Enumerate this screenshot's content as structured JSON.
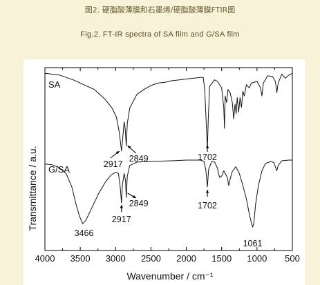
{
  "caption_cn": "图2. 硬脂酸薄膜和石墨烯/硬脂酸薄膜FTIR图",
  "caption_en": "Fig.2. FT-IR spectra of SA film and G/SA film",
  "chart_data": {
    "type": "line",
    "xlabel": "Wavenumber / cm⁻¹",
    "ylabel": "Transmittance / a.u.",
    "xlim": [
      4000,
      500
    ],
    "x_reversed": true,
    "xticks": [
      4000,
      3500,
      3000,
      2500,
      2000,
      1500,
      1000,
      500
    ],
    "grid": false,
    "y_values_relative": "0 = trace bottom, 1 = trace top (arbitrary units, offset stack)",
    "series": [
      {
        "name": "SA",
        "points": [
          [
            4000,
            0.98
          ],
          [
            3800,
            0.96
          ],
          [
            3600,
            0.9
          ],
          [
            3450,
            0.84
          ],
          [
            3300,
            0.78
          ],
          [
            3150,
            0.66
          ],
          [
            3050,
            0.55
          ],
          [
            2990,
            0.44
          ],
          [
            2950,
            0.26
          ],
          [
            2930,
            0.12
          ],
          [
            2917,
            0.02
          ],
          [
            2905,
            0.12
          ],
          [
            2880,
            0.38
          ],
          [
            2865,
            0.3
          ],
          [
            2849,
            0.08
          ],
          [
            2835,
            0.36
          ],
          [
            2800,
            0.55
          ],
          [
            2700,
            0.72
          ],
          [
            2600,
            0.78
          ],
          [
            2500,
            0.83
          ],
          [
            2400,
            0.86
          ],
          [
            2300,
            0.87
          ],
          [
            2200,
            0.89
          ],
          [
            2100,
            0.9
          ],
          [
            2000,
            0.91
          ],
          [
            1900,
            0.92
          ],
          [
            1800,
            0.93
          ],
          [
            1760,
            0.93
          ],
          [
            1740,
            0.78
          ],
          [
            1720,
            0.4
          ],
          [
            1702,
            0.05
          ],
          [
            1690,
            0.4
          ],
          [
            1670,
            0.82
          ],
          [
            1600,
            0.9
          ],
          [
            1560,
            0.88
          ],
          [
            1500,
            0.8
          ],
          [
            1470,
            0.55
          ],
          [
            1460,
            0.3
          ],
          [
            1450,
            0.7
          ],
          [
            1430,
            0.62
          ],
          [
            1410,
            0.78
          ],
          [
            1380,
            0.74
          ],
          [
            1350,
            0.62
          ],
          [
            1330,
            0.42
          ],
          [
            1310,
            0.6
          ],
          [
            1295,
            0.48
          ],
          [
            1280,
            0.68
          ],
          [
            1260,
            0.5
          ],
          [
            1240,
            0.68
          ],
          [
            1220,
            0.56
          ],
          [
            1200,
            0.76
          ],
          [
            1180,
            0.7
          ],
          [
            1150,
            0.84
          ],
          [
            1110,
            0.8
          ],
          [
            1080,
            0.86
          ],
          [
            1000,
            0.88
          ],
          [
            950,
            0.8
          ],
          [
            930,
            0.7
          ],
          [
            910,
            0.86
          ],
          [
            850,
            0.95
          ],
          [
            780,
            0.94
          ],
          [
            740,
            0.88
          ],
          [
            720,
            0.74
          ],
          [
            700,
            0.86
          ],
          [
            650,
            0.97
          ],
          [
            600,
            0.92
          ],
          [
            550,
            0.96
          ],
          [
            500,
            0.98
          ]
        ],
        "annotations": [
          {
            "label": "2917",
            "x": 2917
          },
          {
            "label": "2849",
            "x": 2849
          },
          {
            "label": "1702",
            "x": 1702
          }
        ]
      },
      {
        "name": "G/SA",
        "points": [
          [
            4000,
            0.94
          ],
          [
            3900,
            0.93
          ],
          [
            3800,
            0.89
          ],
          [
            3700,
            0.8
          ],
          [
            3620,
            0.6
          ],
          [
            3560,
            0.34
          ],
          [
            3510,
            0.16
          ],
          [
            3466,
            0.05
          ],
          [
            3420,
            0.1
          ],
          [
            3340,
            0.28
          ],
          [
            3240,
            0.5
          ],
          [
            3140,
            0.68
          ],
          [
            3060,
            0.78
          ],
          [
            3000,
            0.82
          ],
          [
            2960,
            0.8
          ],
          [
            2935,
            0.6
          ],
          [
            2917,
            0.36
          ],
          [
            2905,
            0.62
          ],
          [
            2880,
            0.8
          ],
          [
            2860,
            0.7
          ],
          [
            2849,
            0.44
          ],
          [
            2835,
            0.76
          ],
          [
            2800,
            0.92
          ],
          [
            2700,
            0.97
          ],
          [
            2500,
            0.98
          ],
          [
            2200,
            0.99
          ],
          [
            2000,
            1.0
          ],
          [
            1800,
            1.0
          ],
          [
            1750,
            0.98
          ],
          [
            1725,
            0.86
          ],
          [
            1702,
            0.6
          ],
          [
            1685,
            0.86
          ],
          [
            1640,
            0.98
          ],
          [
            1600,
            0.97
          ],
          [
            1560,
            0.88
          ],
          [
            1530,
            0.74
          ],
          [
            1500,
            0.76
          ],
          [
            1470,
            0.84
          ],
          [
            1450,
            0.8
          ],
          [
            1420,
            0.74
          ],
          [
            1400,
            0.62
          ],
          [
            1380,
            0.72
          ],
          [
            1350,
            0.83
          ],
          [
            1300,
            0.9
          ],
          [
            1250,
            0.8
          ],
          [
            1200,
            0.62
          ],
          [
            1150,
            0.42
          ],
          [
            1110,
            0.2
          ],
          [
            1080,
            0.06
          ],
          [
            1061,
            0.0
          ],
          [
            1045,
            0.06
          ],
          [
            1020,
            0.34
          ],
          [
            980,
            0.62
          ],
          [
            930,
            0.84
          ],
          [
            880,
            0.95
          ],
          [
            800,
            0.98
          ],
          [
            760,
            0.96
          ],
          [
            720,
            0.84
          ],
          [
            700,
            0.92
          ],
          [
            650,
            0.99
          ],
          [
            550,
            1.0
          ],
          [
            500,
            1.0
          ]
        ],
        "annotations": [
          {
            "label": "3466",
            "x": 3466
          },
          {
            "label": "2917",
            "x": 2917
          },
          {
            "label": "2849",
            "x": 2849
          },
          {
            "label": "1702",
            "x": 1702
          },
          {
            "label": "1061",
            "x": 1061
          }
        ]
      }
    ]
  }
}
